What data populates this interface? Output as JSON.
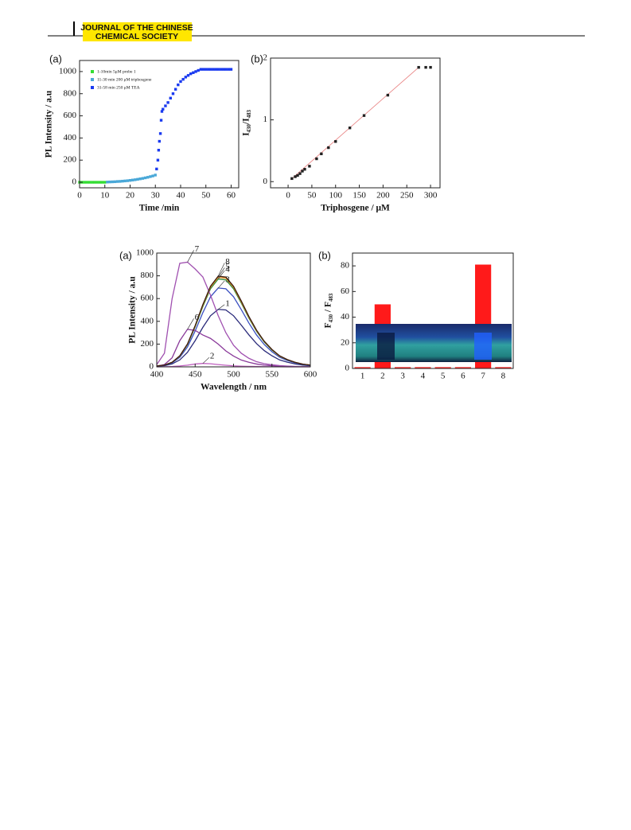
{
  "header": {
    "journal_line1": "JOURNAL OF THE CHINESE",
    "journal_line2": "CHEMICAL SOCIETY"
  },
  "chart_data": [
    {
      "type": "scatter",
      "panel_label": "(a)",
      "x_label": "Time /min",
      "y_label": "PL Intensity / a.u",
      "xlim": [
        0,
        63
      ],
      "ylim": [
        -50,
        1100
      ],
      "xticks": [
        0,
        10,
        20,
        30,
        40,
        50,
        60
      ],
      "yticks": [
        0,
        200,
        400,
        600,
        800,
        1000
      ],
      "legend": "upper left",
      "series": [
        {
          "name": "1-10min 5μM  probe 1",
          "color": "#33dd33",
          "x": [
            0,
            1,
            2,
            3,
            4,
            5,
            6,
            7,
            8,
            9,
            10
          ],
          "values": [
            0,
            0,
            0,
            0,
            0,
            0,
            0,
            0,
            0,
            0,
            0
          ]
        },
        {
          "name": "11-30 min  200 μM triphosgene",
          "color": "#4aa8d8",
          "x": [
            11,
            12,
            13,
            14,
            15,
            16,
            17,
            18,
            19,
            20,
            21,
            22,
            23,
            24,
            25,
            26,
            27,
            28,
            29,
            30
          ],
          "values": [
            2,
            3,
            4,
            5,
            7,
            8,
            10,
            12,
            14,
            17,
            20,
            23,
            27,
            31,
            35,
            40,
            45,
            51,
            57,
            65
          ]
        },
        {
          "name": "31-58 min  250 μM TEA",
          "color": "#1a3af0",
          "x": [
            30.5,
            31,
            31.3,
            31.6,
            32,
            32.3,
            32.6,
            33,
            34,
            35,
            36,
            37,
            38,
            39,
            40,
            41,
            42,
            43,
            44,
            45,
            46,
            47,
            48,
            49,
            50,
            51,
            52,
            53,
            54,
            55,
            56,
            57,
            58,
            59,
            60
          ],
          "values": [
            120,
            200,
            290,
            370,
            440,
            560,
            640,
            660,
            690,
            720,
            760,
            800,
            840,
            880,
            910,
            930,
            950,
            965,
            980,
            990,
            1000,
            1010,
            1020,
            1020,
            1020,
            1020,
            1020,
            1020,
            1020,
            1020,
            1020,
            1020,
            1020,
            1020,
            1020
          ]
        }
      ]
    },
    {
      "type": "scatter",
      "panel_label": "(b)",
      "x_label": "Triphosgene / μM",
      "y_label": "I₄₃₀/I₄₈₃",
      "xlim": [
        -37,
        320
      ],
      "ylim": [
        -0.1,
        2
      ],
      "xticks": [
        0,
        50,
        100,
        150,
        200,
        250,
        300
      ],
      "yticks": [
        0,
        1,
        2
      ],
      "series": [
        {
          "color": "#222222",
          "x": [
            8,
            15,
            20,
            25,
            30,
            35,
            45,
            60,
            70,
            85,
            100,
            130,
            160,
            210,
            275,
            290,
            300
          ],
          "values": [
            0.05,
            0.08,
            0.1,
            0.13,
            0.17,
            0.2,
            0.25,
            0.37,
            0.45,
            0.55,
            0.65,
            0.87,
            1.07,
            1.4,
            1.85,
            1.85,
            1.85
          ]
        }
      ],
      "fit": {
        "color": "#e88080",
        "x": [
          5,
          275
        ],
        "values": [
          0.03,
          1.85
        ]
      }
    },
    {
      "type": "line",
      "panel_label": "(a)",
      "x_label": "Wavelength / nm",
      "y_label": "PL Intensity / a.u",
      "xlim": [
        400,
        600
      ],
      "ylim": [
        0,
        1000
      ],
      "xticks": [
        400,
        450,
        500,
        550,
        600
      ],
      "yticks": [
        0,
        200,
        400,
        600,
        800,
        1000
      ],
      "x": [
        400,
        410,
        420,
        430,
        440,
        450,
        460,
        470,
        480,
        490,
        500,
        510,
        520,
        530,
        540,
        550,
        560,
        570,
        580,
        590,
        600
      ],
      "series": [
        {
          "name": "1",
          "color": "#2a2a7a",
          "values": [
            5,
            10,
            26,
            61,
            128,
            230,
            347,
            449,
            505,
            500,
            449,
            367,
            281,
            204,
            143,
            97,
            61,
            41,
            26,
            15,
            10
          ]
        },
        {
          "name": "2",
          "color": "#c060c0",
          "values": [
            0,
            1,
            3,
            8,
            15,
            25,
            30,
            27,
            20,
            14,
            9,
            6,
            4,
            3,
            2,
            1,
            1,
            0,
            0,
            0,
            0
          ]
        },
        {
          "name": "3",
          "color": "#3a4fc0",
          "values": [
            7,
            14,
            35,
            84,
            175,
            315,
            476,
            616,
            693,
            686,
            616,
            504,
            385,
            280,
            196,
            133,
            84,
            56,
            35,
            21,
            14
          ]
        },
        {
          "name": "4",
          "color": "#2e8b3e",
          "values": [
            8,
            16,
            39,
            94,
            195,
            351,
            530,
            686,
            772,
            764,
            686,
            562,
            429,
            312,
            218,
            148,
            94,
            62,
            39,
            23,
            16
          ]
        },
        {
          "name": "5",
          "color": "#e08a20",
          "values": [
            8,
            16,
            40,
            95,
            199,
            358,
            541,
            700,
            787,
            779,
            700,
            572,
            437,
            318,
            223,
            151,
            95,
            64,
            40,
            24,
            16
          ]
        },
        {
          "name": "6",
          "color": "#8a3a9a",
          "values": [
            5,
            20,
            80,
            230,
            330,
            320,
            280,
            250,
            200,
            140,
            95,
            60,
            40,
            25,
            15,
            10,
            6,
            4,
            2,
            1,
            1
          ]
        },
        {
          "name": "7",
          "color": "#a050b0",
          "values": [
            20,
            120,
            600,
            910,
            920,
            860,
            790,
            630,
            450,
            300,
            190,
            120,
            75,
            45,
            28,
            18,
            11,
            7,
            4,
            2,
            1
          ]
        },
        {
          "name": "8",
          "color": "#3a1a10",
          "values": [
            8,
            16,
            40,
            97,
            201,
            362,
            547,
            708,
            797,
            789,
            708,
            580,
            443,
            322,
            225,
            153,
            97,
            64,
            40,
            24,
            16
          ]
        }
      ]
    },
    {
      "type": "bar",
      "panel_label": "(b)",
      "y_label": "F₄₃₀ / F₄₈₃",
      "ylim": [
        0,
        90
      ],
      "yticks": [
        0,
        20,
        40,
        60,
        80
      ],
      "color": "#ff1a1a",
      "categories": [
        "1",
        "2",
        "3",
        "4",
        "5",
        "6",
        "7",
        "8"
      ],
      "values": [
        1,
        50,
        1,
        1,
        1,
        1,
        81,
        1
      ]
    }
  ]
}
